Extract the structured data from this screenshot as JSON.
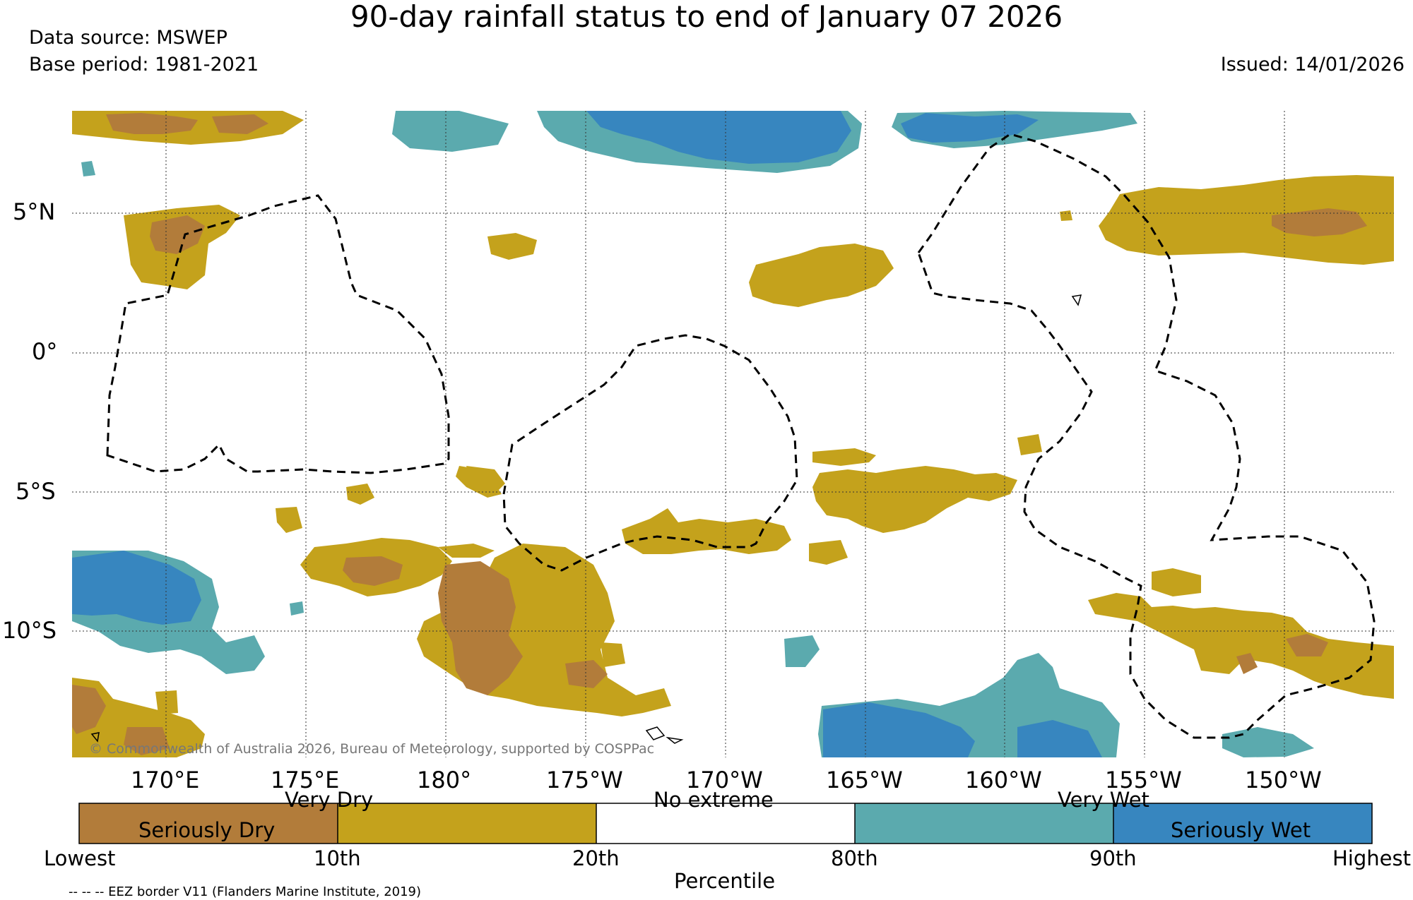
{
  "header": {
    "title": "90-day rainfall status to end of January 07 2026",
    "data_source": "Data source: MSWEP",
    "base_period": "Base period: 1981-2021",
    "issued": "Issued: 14/01/2026"
  },
  "map": {
    "lat_labels": [
      "5°N",
      "0°",
      "5°S",
      "10°S"
    ],
    "lon_labels": [
      "170°E",
      "175°E",
      "180°",
      "175°W",
      "170°W",
      "165°W",
      "160°W",
      "155°W",
      "150°W"
    ],
    "copyright": "© Commonwealth of Australia 2026, Bureau of Meteorology, supported by COSPPac"
  },
  "legend": {
    "categories": [
      {
        "label": "Seriously Dry",
        "color": "#b27c3a"
      },
      {
        "label": "Very Dry",
        "color": "#c4a21c"
      },
      {
        "label": "No extreme",
        "color": "#ffffff"
      },
      {
        "label": "Very Wet",
        "color": "#5baaae"
      },
      {
        "label": "Seriously Wet",
        "color": "#3786bf"
      }
    ],
    "ticks": [
      "Lowest",
      "10th",
      "20th",
      "80th",
      "90th",
      "Highest"
    ],
    "axis_label": "Percentile"
  },
  "footnote": "-- -- -- EEZ border V11 (Flanders Marine Institute, 2019)",
  "colors": {
    "seriously_dry": "#b27c3a",
    "very_dry": "#c4a21c",
    "very_wet": "#5baaae",
    "seriously_wet": "#3786bf",
    "grid": "#333333"
  }
}
